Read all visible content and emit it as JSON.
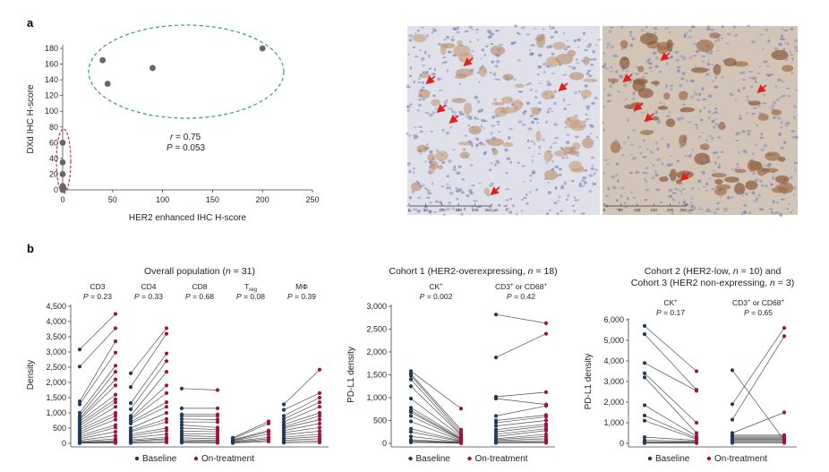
{
  "panels": {
    "a": "a",
    "b": "b"
  },
  "colors": {
    "baseline": "#1f3b5a",
    "ontreatment": "#a3123a",
    "ellipse_green": "#2ca84a",
    "ellipse_red": "#d0202a",
    "dot_gray": "#666666",
    "arrow": "#e0201a"
  },
  "micrographs": {
    "left": {
      "scale_ticks": [
        "0",
        "50",
        "100",
        "150",
        "200",
        "250 µm"
      ]
    },
    "right": {
      "scale_ticks": [
        "0",
        "50",
        "100",
        "150",
        "200",
        "250 µm"
      ]
    }
  },
  "legend": {
    "baseline": "Baseline",
    "ontreatment": "On-treatment"
  },
  "chart_data": [
    {
      "id": "scatter-a",
      "type": "scatter",
      "xlabel": "HER2 enhanced IHC H-score",
      "ylabel": "DXd IHC H-score",
      "xlim": [
        0,
        250
      ],
      "ylim": [
        0,
        180
      ],
      "xticks": [
        0,
        50,
        100,
        150,
        200,
        250
      ],
      "yticks": [
        0,
        20,
        40,
        60,
        80,
        100,
        120,
        140,
        160,
        180
      ],
      "points": [
        {
          "x": 40,
          "y": 165
        },
        {
          "x": 45,
          "y": 135
        },
        {
          "x": 90,
          "y": 155
        },
        {
          "x": 200,
          "y": 180
        },
        {
          "x": 0,
          "y": 60
        },
        {
          "x": 0,
          "y": 35
        },
        {
          "x": 0,
          "y": 20
        },
        {
          "x": 0,
          "y": 5
        },
        {
          "x": 0,
          "y": 0
        },
        {
          "x": 1,
          "y": 2
        }
      ],
      "annotation": {
        "r_label": "r",
        "r_value": " = 0.75",
        "p_label": "P",
        "p_value": " = 0.053"
      },
      "grid": false
    },
    {
      "id": "overall",
      "type": "line",
      "title_parts": [
        "Overall population (",
        "n",
        " = 31)"
      ],
      "ylabel": "Density",
      "ylim": [
        0,
        4500
      ],
      "yticks": [
        "0",
        "500",
        "1,000",
        "1,500",
        "2,000",
        "2,500",
        "3,000",
        "3,500",
        "4,000",
        "4,500"
      ],
      "ytick_values": [
        0,
        500,
        1000,
        1500,
        2000,
        2500,
        3000,
        3500,
        4000,
        4500
      ],
      "groups": [
        {
          "label": "CD3",
          "sub": "",
          "p": " = 0.23",
          "pairs": [
            [
              3080,
              4250
            ],
            [
              2520,
              3780
            ],
            [
              1380,
              3350
            ],
            [
              1280,
              2980
            ],
            [
              1000,
              2550
            ],
            [
              900,
              2350
            ],
            [
              820,
              2100
            ],
            [
              780,
              1900
            ],
            [
              720,
              1600
            ],
            [
              650,
              1450
            ],
            [
              580,
              1350
            ],
            [
              500,
              1200
            ],
            [
              450,
              1000
            ],
            [
              380,
              900
            ],
            [
              320,
              780
            ],
            [
              260,
              600
            ],
            [
              200,
              520
            ],
            [
              150,
              380
            ],
            [
              100,
              250
            ],
            [
              60,
              150
            ],
            [
              40,
              90
            ],
            [
              20,
              60
            ],
            [
              10,
              30
            ],
            [
              5,
              10
            ]
          ]
        },
        {
          "label": "CD4",
          "sub": "",
          "p": " = 0.33",
          "pairs": [
            [
              2300,
              3780
            ],
            [
              1850,
              3600
            ],
            [
              1320,
              2950
            ],
            [
              1120,
              2700
            ],
            [
              900,
              2350
            ],
            [
              820,
              1900
            ],
            [
              780,
              1650
            ],
            [
              700,
              1350
            ],
            [
              650,
              1200
            ],
            [
              500,
              1000
            ],
            [
              420,
              800
            ],
            [
              380,
              700
            ],
            [
              300,
              500
            ],
            [
              240,
              420
            ],
            [
              180,
              300
            ],
            [
              120,
              200
            ],
            [
              80,
              150
            ],
            [
              50,
              120
            ],
            [
              20,
              60
            ],
            [
              10,
              30
            ]
          ]
        },
        {
          "label": "CD8",
          "sub": "",
          "p": " = 0.68",
          "pairs": [
            [
              1800,
              1750
            ],
            [
              1150,
              1150
            ],
            [
              950,
              950
            ],
            [
              900,
              900
            ],
            [
              800,
              780
            ],
            [
              700,
              700
            ],
            [
              600,
              520
            ],
            [
              500,
              450
            ],
            [
              400,
              380
            ],
            [
              320,
              300
            ],
            [
              250,
              220
            ],
            [
              180,
              150
            ],
            [
              120,
              100
            ],
            [
              80,
              60
            ],
            [
              40,
              30
            ],
            [
              20,
              15
            ]
          ]
        },
        {
          "label": "T",
          "sub": "reg",
          "p": " = 0.08",
          "pairs": [
            [
              180,
              720
            ],
            [
              150,
              650
            ],
            [
              120,
              420
            ],
            [
              100,
              380
            ],
            [
              80,
              300
            ],
            [
              60,
              200
            ],
            [
              40,
              150
            ],
            [
              20,
              100
            ],
            [
              10,
              60
            ]
          ]
        },
        {
          "label": "MΦ",
          "sub": "",
          "p": " = 0.39",
          "pairs": [
            [
              1280,
              2420
            ],
            [
              1100,
              1650
            ],
            [
              900,
              1500
            ],
            [
              800,
              1350
            ],
            [
              700,
              1200
            ],
            [
              620,
              1000
            ],
            [
              550,
              900
            ],
            [
              500,
              780
            ],
            [
              420,
              650
            ],
            [
              350,
              520
            ],
            [
              280,
              400
            ],
            [
              200,
              300
            ],
            [
              150,
              220
            ],
            [
              100,
              150
            ],
            [
              50,
              80
            ],
            [
              20,
              30
            ]
          ]
        }
      ],
      "p_label": "P"
    },
    {
      "id": "cohort1",
      "type": "line",
      "title_parts": [
        "Cohort 1 (HER2-overexpressing, ",
        "n",
        " = 18)"
      ],
      "ylabel": "PD-L1 density",
      "ylim": [
        0,
        3000
      ],
      "yticks": [
        "0",
        "500",
        "1,000",
        "1,500",
        "2,000",
        "2,500",
        "3,000"
      ],
      "ytick_values": [
        0,
        500,
        1000,
        1500,
        2000,
        2500,
        3000
      ],
      "groups": [
        {
          "label": "CK",
          "sup": "+",
          "p": " = 0.002",
          "pairs": [
            [
              1580,
              760
            ],
            [
              1520,
              300
            ],
            [
              1480,
              250
            ],
            [
              1400,
              200
            ],
            [
              1250,
              180
            ],
            [
              980,
              150
            ],
            [
              780,
              120
            ],
            [
              720,
              100
            ],
            [
              680,
              90
            ],
            [
              600,
              80
            ],
            [
              480,
              60
            ],
            [
              320,
              50
            ],
            [
              250,
              40
            ],
            [
              150,
              30
            ],
            [
              80,
              20
            ],
            [
              60,
              10
            ],
            [
              40,
              5
            ],
            [
              20,
              2
            ]
          ]
        },
        {
          "label": "CD3",
          "sup": "+",
          "mid": " or CD68",
          "sup2": "+",
          "p": " = 0.42",
          "pairs": [
            [
              2820,
              2630
            ],
            [
              1880,
              2400
            ],
            [
              1020,
              1120
            ],
            [
              980,
              850
            ],
            [
              600,
              820
            ],
            [
              500,
              620
            ],
            [
              450,
              580
            ],
            [
              380,
              500
            ],
            [
              300,
              420
            ],
            [
              250,
              380
            ],
            [
              200,
              320
            ],
            [
              150,
              280
            ],
            [
              100,
              200
            ],
            [
              80,
              150
            ],
            [
              60,
              100
            ],
            [
              40,
              60
            ],
            [
              20,
              30
            ],
            [
              10,
              10
            ]
          ]
        }
      ],
      "p_label": "P"
    },
    {
      "id": "cohort23",
      "type": "line",
      "title_parts": [
        "Cohort 2 (HER2-low, ",
        "n",
        " = 10) and"
      ],
      "title_line2_parts": [
        "Cohort 3 (HER2 non-expressing, ",
        "n",
        " = 3)"
      ],
      "ylabel": "PD-L1 density",
      "ylim": [
        0,
        6000
      ],
      "yticks": [
        "0",
        "1,000",
        "2,000",
        "3,000",
        "4,000",
        "5,000",
        "6,000"
      ],
      "ytick_values": [
        0,
        1000,
        2000,
        3000,
        4000,
        5000,
        6000
      ],
      "groups": [
        {
          "label": "CK",
          "sup": "+",
          "p": " = 0.17",
          "pairs": [
            [
              5700,
              3500
            ],
            [
              5300,
              2600
            ],
            [
              3900,
              2550
            ],
            [
              3400,
              1000
            ],
            [
              3200,
              500
            ],
            [
              1850,
              350
            ],
            [
              1350,
              250
            ],
            [
              1100,
              200
            ],
            [
              300,
              150
            ],
            [
              150,
              100
            ],
            [
              80,
              60
            ],
            [
              40,
              30
            ],
            [
              10,
              10
            ]
          ]
        },
        {
          "label": "CD3",
          "sup": "+",
          "mid": " or CD68",
          "sup2": "+",
          "p": " = 0.65",
          "pairs": [
            [
              3550,
              150
            ],
            [
              1900,
              5600
            ],
            [
              1150,
              5200
            ],
            [
              500,
              1500
            ],
            [
              400,
              400
            ],
            [
              350,
              350
            ],
            [
              300,
              300
            ],
            [
              250,
              250
            ],
            [
              200,
              200
            ],
            [
              150,
              150
            ],
            [
              100,
              100
            ],
            [
              50,
              50
            ],
            [
              20,
              20
            ]
          ]
        }
      ],
      "p_label": "P"
    }
  ]
}
